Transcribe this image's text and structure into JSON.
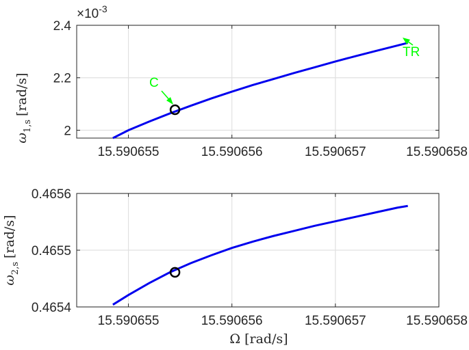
{
  "chart_data": [
    {
      "type": "line",
      "ylabel": {
        "symbol": "ω",
        "sub": "1,s",
        "units": "[rad/s]"
      },
      "xlabel": "",
      "exponent": {
        "base": "×10",
        "power": "-3"
      },
      "xlim": [
        15.5906545,
        15.590658
      ],
      "ylim": [
        1.97,
        2.4
      ],
      "xticks": [
        15.590655,
        15.590656,
        15.590657,
        15.590658
      ],
      "xtick_labels": [
        "15.590655",
        "15.590656",
        "15.590657",
        "15.590658"
      ],
      "yticks": [
        2.0,
        2.2,
        2.4
      ],
      "ytick_labels": [
        "2",
        "2.2",
        "2.4"
      ],
      "grid": true,
      "series": [
        {
          "color": "#0000ee",
          "x": [
            15.59065485,
            15.590655,
            15.5906552,
            15.5906554,
            15.5906556,
            15.5906558,
            15.590656,
            15.5906562,
            15.5906564,
            15.5906566,
            15.5906568,
            15.590657,
            15.5906572,
            15.5906574,
            15.5906576,
            15.5906577
          ],
          "y": [
            1.97,
            2.0,
            2.033,
            2.064,
            2.093,
            2.121,
            2.147,
            2.172,
            2.195,
            2.218,
            2.24,
            2.262,
            2.283,
            2.303,
            2.323,
            2.333
          ]
        }
      ],
      "markers": [
        {
          "x": 15.59065545,
          "y": 2.078,
          "style": "open-circle",
          "color": "#000000"
        }
      ],
      "annotations": [
        {
          "text": "C",
          "x": 15.59065545,
          "y": 2.078,
          "color": "#00ff00"
        },
        {
          "text": "TR",
          "x": 15.5906577,
          "y": 2.333,
          "color": "#00ff00"
        }
      ]
    },
    {
      "type": "line",
      "ylabel": {
        "symbol": "ω",
        "sub": "2,s",
        "units": "[rad/s]"
      },
      "xlabel": {
        "symbol": "Ω",
        "units": "[rad/s]"
      },
      "xlim": [
        15.5906545,
        15.590658
      ],
      "ylim": [
        0.4654,
        0.4656
      ],
      "xticks": [
        15.590655,
        15.590656,
        15.590657,
        15.590658
      ],
      "xtick_labels": [
        "15.590655",
        "15.590656",
        "15.590657",
        "15.590658"
      ],
      "yticks": [
        0.4654,
        0.4655,
        0.4656
      ],
      "ytick_labels": [
        "0.4654",
        "0.4655",
        "0.4656"
      ],
      "grid": true,
      "series": [
        {
          "color": "#0000ee",
          "x": [
            15.59065485,
            15.590655,
            15.5906552,
            15.5906554,
            15.5906556,
            15.5906558,
            15.590656,
            15.5906562,
            15.5906564,
            15.5906566,
            15.5906568,
            15.590657,
            15.5906572,
            15.5906574,
            15.5906576,
            15.5906577
          ],
          "y": [
            0.465404,
            0.465421,
            0.465442,
            0.465461,
            0.465477,
            0.465491,
            0.465504,
            0.465515,
            0.465525,
            0.465534,
            0.465543,
            0.465551,
            0.465559,
            0.465567,
            0.465575,
            0.465578
          ]
        }
      ],
      "markers": [
        {
          "x": 15.59065545,
          "y": 0.465461,
          "style": "open-circle",
          "color": "#000000"
        }
      ]
    }
  ]
}
